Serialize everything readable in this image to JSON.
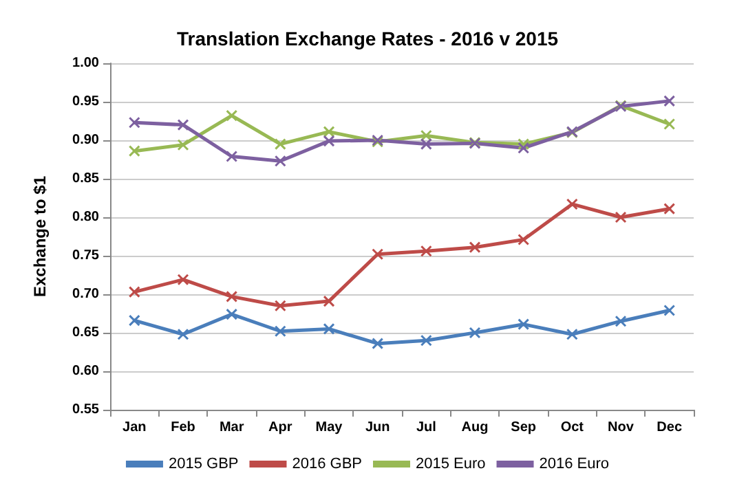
{
  "chart_data": {
    "type": "line",
    "title": "Translation Exchange Rates - 2016 v 2015",
    "ylabel": "Exchange to $1",
    "categories": [
      "Jan",
      "Feb",
      "Mar",
      "Apr",
      "May",
      "Jun",
      "Jul",
      "Aug",
      "Sep",
      "Oct",
      "Nov",
      "Dec"
    ],
    "series": [
      {
        "name": "2015 GBP",
        "color": "#4a7ebb",
        "values": [
          0.666,
          0.648,
          0.674,
          0.652,
          0.655,
          0.636,
          0.64,
          0.65,
          0.661,
          0.648,
          0.665,
          0.679
        ]
      },
      {
        "name": "2016 GBP",
        "color": "#be4b48",
        "values": [
          0.703,
          0.719,
          0.697,
          0.685,
          0.691,
          0.752,
          0.756,
          0.761,
          0.771,
          0.817,
          0.8,
          0.811
        ]
      },
      {
        "name": "2015 Euro",
        "color": "#98b954",
        "values": [
          0.886,
          0.894,
          0.932,
          0.895,
          0.911,
          0.898,
          0.906,
          0.897,
          0.895,
          0.91,
          0.945,
          0.921
        ]
      },
      {
        "name": "2016 Euro",
        "color": "#7d60a0",
        "values": [
          0.923,
          0.92,
          0.879,
          0.873,
          0.899,
          0.9,
          0.895,
          0.896,
          0.89,
          0.911,
          0.944,
          0.951
        ]
      }
    ],
    "ylim": [
      0.55,
      1.0
    ],
    "yticks": [
      {
        "value": 0.55,
        "label": "0.55"
      },
      {
        "value": 0.6,
        "label": "0.60"
      },
      {
        "value": 0.65,
        "label": "0.65"
      },
      {
        "value": 0.7,
        "label": "0.70"
      },
      {
        "value": 0.75,
        "label": "0.75"
      },
      {
        "value": 0.8,
        "label": "0.80"
      },
      {
        "value": 0.85,
        "label": "0.85"
      },
      {
        "value": 0.9,
        "label": "0.90"
      },
      {
        "value": 0.95,
        "label": "0.95"
      },
      {
        "value": 1.0,
        "label": "1.00"
      }
    ],
    "grid": "y",
    "legend": "bottom",
    "marker": "cross",
    "line_style": "solid"
  }
}
